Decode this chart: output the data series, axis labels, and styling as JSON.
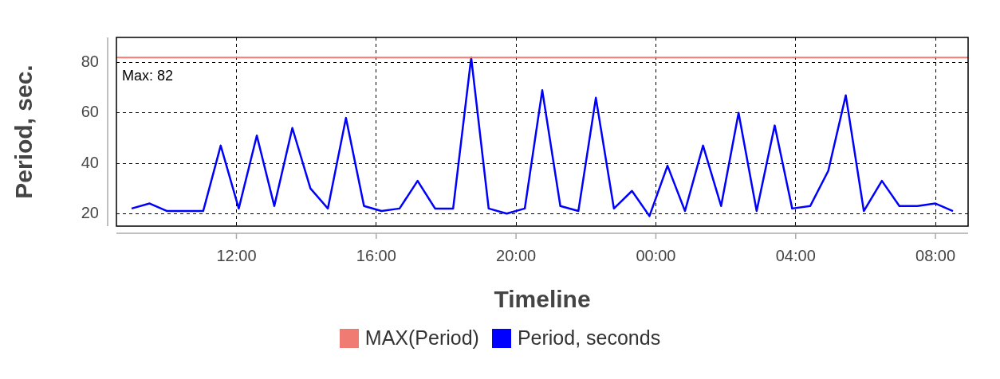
{
  "chart_data": {
    "type": "line",
    "xlabel": "Timeline",
    "ylabel": "Period, sec.",
    "x": [
      "--01-01T09:00",
      "--01-01T09:31",
      "--01-01T10:01",
      "--01-01T10:32",
      "--01-01T11:03",
      "--01-01T11:33",
      "--01-01T12:04",
      "--01-01T12:35",
      "--01-01T13:05",
      "--01-01T13:36",
      "--01-01T14:07",
      "--01-01T14:37",
      "--01-01T15:08",
      "--01-01T15:39",
      "--01-01T16:09",
      "--01-01T16:40",
      "--01-01T17:11",
      "--01-01T17:41",
      "--01-01T18:12",
      "--01-01T18:43",
      "--01-01T19:13",
      "--01-01T19:44",
      "--01-01T20:15",
      "--01-01T20:45",
      "--01-01T21:16",
      "--01-01T21:47",
      "--01-01T22:17",
      "--01-01T22:48",
      "--01-01T23:19",
      "--01-01T23:49",
      "--01-02T00:20",
      "--01-02T00:50",
      "--01-02T01:21",
      "--01-02T01:52",
      "--01-02T02:22",
      "--01-02T02:53",
      "--01-02T03:24",
      "--01-02T03:54",
      "--01-02T04:25",
      "--01-02T04:56",
      "--01-02T05:26",
      "--01-02T05:57",
      "--01-02T06:28",
      "--01-02T06:58",
      "--01-02T07:29",
      "--01-02T08:00",
      "--01-02T08:30"
    ],
    "series": [
      {
        "name": "Period, seconds",
        "color": "#0000ff",
        "values": [
          22,
          24,
          21,
          21,
          21,
          47,
          22,
          51,
          23,
          54,
          30,
          22,
          58,
          23,
          21,
          22,
          33,
          22,
          22,
          82,
          22,
          20,
          22,
          69,
          23,
          21,
          66,
          22,
          29,
          19,
          39,
          21,
          47,
          23,
          60,
          21,
          55,
          22,
          23,
          37,
          67,
          21,
          33,
          23,
          23,
          24,
          21
        ]
      }
    ],
    "ref_lines": [
      {
        "axis": "y",
        "value": 82,
        "label": "MAX(Period)",
        "color": "#f07b72"
      }
    ],
    "annotations": [
      "Max: 82"
    ],
    "xlim": [
      "--01-01T08:34",
      "--01-02T08:56"
    ],
    "xticks": [
      {
        "value": "--01-01T12:00",
        "label": "12:00"
      },
      {
        "value": "--01-01T16:00",
        "label": "16:00"
      },
      {
        "value": "--01-01T20:00",
        "label": "20:00"
      },
      {
        "value": "--01-02T00:00",
        "label": "00:00"
      },
      {
        "value": "--01-02T04:00",
        "label": "04:00"
      },
      {
        "value": "--01-02T08:00",
        "label": "08:00"
      }
    ],
    "ylim": [
      15,
      90
    ],
    "yticks": [
      20,
      40,
      60,
      80
    ],
    "grid": true,
    "legend": "bottom",
    "marker": "none",
    "line_style": "solid"
  }
}
